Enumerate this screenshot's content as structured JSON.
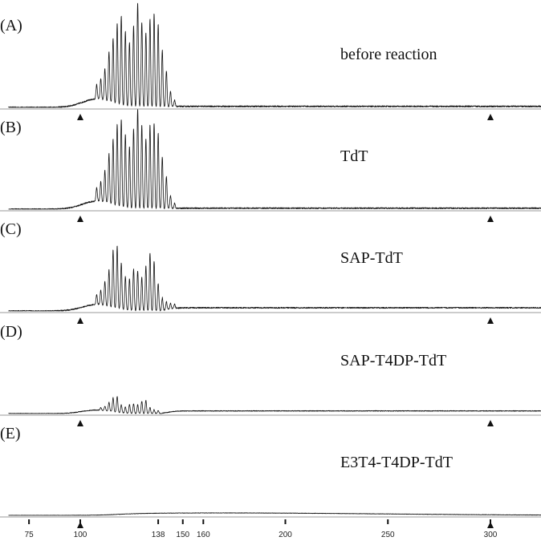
{
  "chart_data": {
    "type": "line",
    "x_axis": {
      "ticks": [
        75,
        100,
        138,
        150,
        160,
        200,
        250,
        300
      ],
      "range": [
        65,
        328
      ]
    },
    "marker_positions": [
      100,
      300
    ],
    "panels": [
      {
        "letter": "(A)",
        "label": "before reaction",
        "tail_level": 0.01,
        "peaks": [
          {
            "x": 108,
            "y": 0.14
          },
          {
            "x": 110,
            "y": 0.2
          },
          {
            "x": 112,
            "y": 0.3
          },
          {
            "x": 114,
            "y": 0.48
          },
          {
            "x": 116,
            "y": 0.62
          },
          {
            "x": 118,
            "y": 0.78
          },
          {
            "x": 120,
            "y": 0.86
          },
          {
            "x": 122,
            "y": 0.72
          },
          {
            "x": 124,
            "y": 0.62
          },
          {
            "x": 126,
            "y": 0.78
          },
          {
            "x": 128,
            "y": 1.0
          },
          {
            "x": 130,
            "y": 0.82
          },
          {
            "x": 132,
            "y": 0.72
          },
          {
            "x": 134,
            "y": 0.85
          },
          {
            "x": 136,
            "y": 0.9
          },
          {
            "x": 138,
            "y": 0.8
          },
          {
            "x": 140,
            "y": 0.55
          },
          {
            "x": 142,
            "y": 0.35
          },
          {
            "x": 144,
            "y": 0.15
          },
          {
            "x": 146,
            "y": 0.06
          }
        ]
      },
      {
        "letter": "(B)",
        "label": "TdT",
        "tail_level": 0.01,
        "peaks": [
          {
            "x": 108,
            "y": 0.14
          },
          {
            "x": 110,
            "y": 0.2
          },
          {
            "x": 112,
            "y": 0.32
          },
          {
            "x": 114,
            "y": 0.5
          },
          {
            "x": 116,
            "y": 0.66
          },
          {
            "x": 118,
            "y": 0.82
          },
          {
            "x": 120,
            "y": 0.88
          },
          {
            "x": 122,
            "y": 0.74
          },
          {
            "x": 124,
            "y": 0.62
          },
          {
            "x": 126,
            "y": 0.8
          },
          {
            "x": 128,
            "y": 1.0
          },
          {
            "x": 130,
            "y": 0.84
          },
          {
            "x": 132,
            "y": 0.7
          },
          {
            "x": 134,
            "y": 0.84
          },
          {
            "x": 136,
            "y": 0.86
          },
          {
            "x": 138,
            "y": 0.76
          },
          {
            "x": 140,
            "y": 0.52
          },
          {
            "x": 142,
            "y": 0.32
          },
          {
            "x": 144,
            "y": 0.13
          },
          {
            "x": 146,
            "y": 0.05
          }
        ]
      },
      {
        "letter": "(C)",
        "label": "SAP-TdT",
        "tail_level": 0.04,
        "peaks": [
          {
            "x": 108,
            "y": 0.12
          },
          {
            "x": 110,
            "y": 0.18
          },
          {
            "x": 112,
            "y": 0.3
          },
          {
            "x": 114,
            "y": 0.46
          },
          {
            "x": 116,
            "y": 0.72
          },
          {
            "x": 118,
            "y": 0.78
          },
          {
            "x": 120,
            "y": 0.58
          },
          {
            "x": 122,
            "y": 0.42
          },
          {
            "x": 124,
            "y": 0.4
          },
          {
            "x": 126,
            "y": 0.52
          },
          {
            "x": 128,
            "y": 0.5
          },
          {
            "x": 130,
            "y": 0.42
          },
          {
            "x": 132,
            "y": 0.56
          },
          {
            "x": 134,
            "y": 0.72
          },
          {
            "x": 136,
            "y": 0.62
          },
          {
            "x": 138,
            "y": 0.34
          },
          {
            "x": 140,
            "y": 0.16
          },
          {
            "x": 142,
            "y": 0.1
          },
          {
            "x": 144,
            "y": 0.07
          },
          {
            "x": 146,
            "y": 0.05
          }
        ]
      },
      {
        "letter": "(D)",
        "label": "SAP-T4DP-TdT",
        "tail_level": 0.06,
        "peaks": [
          {
            "x": 110,
            "y": 0.06
          },
          {
            "x": 112,
            "y": 0.1
          },
          {
            "x": 114,
            "y": 0.2
          },
          {
            "x": 116,
            "y": 0.32
          },
          {
            "x": 118,
            "y": 0.36
          },
          {
            "x": 120,
            "y": 0.18
          },
          {
            "x": 122,
            "y": 0.14
          },
          {
            "x": 124,
            "y": 0.2
          },
          {
            "x": 126,
            "y": 0.22
          },
          {
            "x": 128,
            "y": 0.2
          },
          {
            "x": 130,
            "y": 0.28
          },
          {
            "x": 132,
            "y": 0.3
          },
          {
            "x": 134,
            "y": 0.14
          },
          {
            "x": 136,
            "y": 0.09
          },
          {
            "x": 138,
            "y": 0.07
          }
        ]
      },
      {
        "letter": "(E)",
        "label": "E3T4-T4DP-TdT",
        "tail_level": 0.12,
        "broad_center": 170,
        "broad_width": 50,
        "peaks": []
      }
    ]
  }
}
